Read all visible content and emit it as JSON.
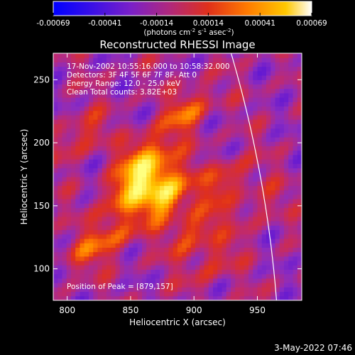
{
  "colorbar": {
    "ticks": [
      "-0.00069",
      "-0.00041",
      "-0.00014",
      "0.00014",
      "0.00041",
      "0.00069"
    ],
    "units_main": "(photons cm",
    "units_sup1": "-2",
    "units_mid1": " s",
    "units_sup2": "-1",
    "units_mid2": " asec",
    "units_sup3": "-2",
    "units_end": ")"
  },
  "plot": {
    "title": "Reconstructed RHESSI Image",
    "annotation_lines": [
      "17-Nov-2002 10:55:16.000 to 10:58:32.000",
      "Detectors: 3F 4F 5F 6F 7F 8F, Att 0",
      "Energy Range: 12.0 - 25.0 keV",
      "Clean     Total counts: 3.82E+03"
    ],
    "peak_text": "Position of Peak = [879,157]"
  },
  "footer": {
    "timestamp": "3-May-2022 07:46"
  },
  "chart_data": {
    "type": "heatmap",
    "title": "Reconstructed RHESSI Image",
    "xlabel": "Heliocentric X (arcsec)",
    "ylabel": "Heliocentric Y (arcsec)",
    "xlim": [
      789,
      985
    ],
    "ylim": [
      75,
      271
    ],
    "xticks": [
      800,
      850,
      900,
      950
    ],
    "yticks": [
      100,
      150,
      200,
      250
    ],
    "color_range": [
      -0.00069,
      0.00069
    ],
    "colormap": [
      "#0000ff",
      "#5a14d6",
      "#8c2cc0",
      "#c02a6e",
      "#e0301a",
      "#ff7a00",
      "#ffc800",
      "#ffff80"
    ],
    "peak_position": [
      879,
      157
    ],
    "limb_arc_color": "#ffffff",
    "ripple_background_level": -0.0002,
    "source_region_levels": [
      {
        "x": 879,
        "y": 157,
        "value": 0.00069
      },
      {
        "x": 868,
        "y": 175,
        "value": 0.00055
      },
      {
        "x": 858,
        "y": 190,
        "value": 0.00045
      },
      {
        "x": 845,
        "y": 160,
        "value": 0.00042
      },
      {
        "x": 900,
        "y": 130,
        "value": 0.00038
      },
      {
        "x": 895,
        "y": 225,
        "value": 0.0004
      },
      {
        "x": 840,
        "y": 128,
        "value": 0.0003
      },
      {
        "x": 925,
        "y": 170,
        "value": 0.00032
      },
      {
        "x": 810,
        "y": 205,
        "value": 0.00028
      },
      {
        "x": 815,
        "y": 115,
        "value": 0.00026
      },
      {
        "x": 915,
        "y": 105,
        "value": 0.00024
      },
      {
        "x": 950,
        "y": 150,
        "value": 0.00018
      }
    ]
  }
}
